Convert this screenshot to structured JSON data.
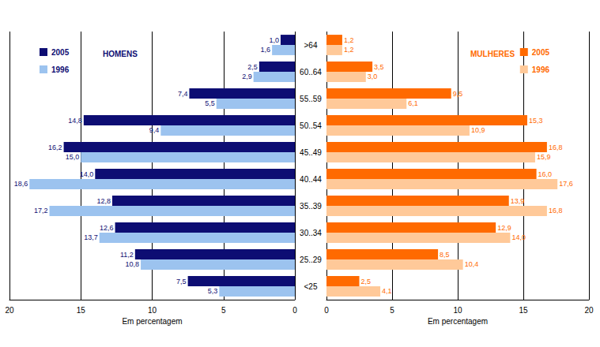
{
  "chart_data": [
    {
      "type": "bar",
      "orientation": "horizontal",
      "title": "HOMENS",
      "categories": [
        ">64",
        "60..64",
        "55..59",
        "50..54",
        "45..49",
        "40..44",
        "35..39",
        "30..34",
        "25..29",
        "<25"
      ],
      "series": [
        {
          "name": "2005",
          "color": "#0d0d73",
          "values": [
            1.0,
            2.5,
            7.4,
            14.8,
            16.2,
            14.0,
            12.8,
            12.6,
            11.2,
            7.5
          ],
          "value_labels": [
            "1,0",
            "2,5",
            "7,4",
            "14,8",
            "16,2",
            "14,0",
            "12,8",
            "12,6",
            "11,2",
            "7,5"
          ]
        },
        {
          "name": "1996",
          "color": "#9cc3ef",
          "values": [
            1.6,
            2.9,
            5.5,
            9.4,
            15.0,
            18.6,
            17.2,
            13.7,
            10.8,
            5.3
          ],
          "value_labels": [
            "1,6",
            "2,9",
            "5,5",
            "9,4",
            "15,0",
            "18,6",
            "17,2",
            "13,7",
            "10,8",
            "5,3"
          ]
        }
      ],
      "xlabel": "Em percentagem",
      "xlim": [
        20,
        0
      ],
      "xticks": [
        20,
        15,
        10,
        5,
        0
      ],
      "grid": true,
      "legend": "upper left",
      "data_labels": true,
      "tick_labels": "x"
    },
    {
      "type": "bar",
      "orientation": "horizontal",
      "title": "MULHERES",
      "categories": [
        ">64",
        "60..64",
        "55..59",
        "50..54",
        "45..49",
        "40..44",
        "35..39",
        "30..34",
        "25..29",
        "<25"
      ],
      "series": [
        {
          "name": "2005",
          "color": "#ff6a00",
          "values": [
            1.2,
            3.5,
            9.5,
            15.3,
            16.8,
            16.0,
            13.9,
            12.9,
            8.5,
            2.5
          ],
          "value_labels": [
            "1,2",
            "3,5",
            "9,5",
            "15,3",
            "16,8",
            "16,0",
            "13,9",
            "12,9",
            "8,5",
            "2,5"
          ]
        },
        {
          "name": "1996",
          "color": "#ffc999",
          "values": [
            1.2,
            3.0,
            6.1,
            10.9,
            15.9,
            17.6,
            16.8,
            14.0,
            10.4,
            4.1
          ],
          "value_labels": [
            "1,2",
            "3,0",
            "6,1",
            "10,9",
            "15,9",
            "17,6",
            "16,8",
            "14,0",
            "10,4",
            "4,1"
          ]
        }
      ],
      "xlabel": "Em percentagem",
      "xlim": [
        0,
        20
      ],
      "xticks": [
        0,
        5,
        10,
        15,
        20
      ],
      "grid": true,
      "legend": "upper right",
      "data_labels": true
    }
  ]
}
